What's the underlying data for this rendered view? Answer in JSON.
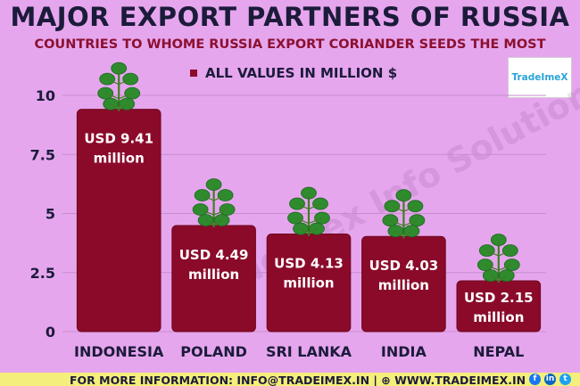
{
  "header": {
    "title": "MAJOR EXPORT PARTNERS OF RUSSIA",
    "subtitle": "COUNTRIES TO WHOME RUSSIA EXPORT CORIANDER SEEDS THE MOST",
    "legend_label": "ALL VALUES IN MILLION $",
    "logo_text": "TradeImeX",
    "watermark": "Tradeimex Info Solution Pvt Ltd"
  },
  "footer": {
    "text": "FOR MORE INFORMATION: INFO@TRADEIMEX.IN | ⊕ WWW.TRADEIMEX.IN",
    "social_icons": [
      "facebook-icon",
      "linkedin-icon",
      "twitter-icon"
    ]
  },
  "colors": {
    "background": "#e6a6ee",
    "bar": "#8b0a2a",
    "bar_stroke": "#6e0820",
    "title": "#1b1b3a",
    "subtitle": "#8b1030",
    "grid": "#c48fcc",
    "footer": "#f4ee7a",
    "leaf": "#2e8b2e"
  },
  "chart_data": {
    "type": "bar",
    "title": "MAJOR EXPORT PARTNERS OF RUSSIA",
    "subtitle": "COUNTRIES TO WHOME RUSSIA EXPORT CORIANDER SEEDS THE MOST",
    "categories": [
      "INDONESIA",
      "POLAND",
      "SRI LANKA",
      "INDIA",
      "NEPAL"
    ],
    "values": [
      9.41,
      4.49,
      4.13,
      4.03,
      2.15
    ],
    "data_labels": [
      [
        "USD 9.41",
        "million"
      ],
      [
        "USD 4.49",
        "million"
      ],
      [
        "USD 4.13",
        "million"
      ],
      [
        "USD 4.03",
        "million"
      ],
      [
        "USD 2.15",
        "million"
      ]
    ],
    "series": [
      {
        "name": "ALL VALUES IN MILLION $",
        "values": [
          9.41,
          4.49,
          4.13,
          4.03,
          2.15
        ]
      }
    ],
    "ylim": [
      0,
      10
    ],
    "yticks": [
      0,
      2.5,
      5,
      7.5,
      10
    ],
    "ytick_labels": [
      "0",
      "2.5",
      "5",
      "7.5",
      "10"
    ],
    "grid": true,
    "legend": "top-center"
  }
}
